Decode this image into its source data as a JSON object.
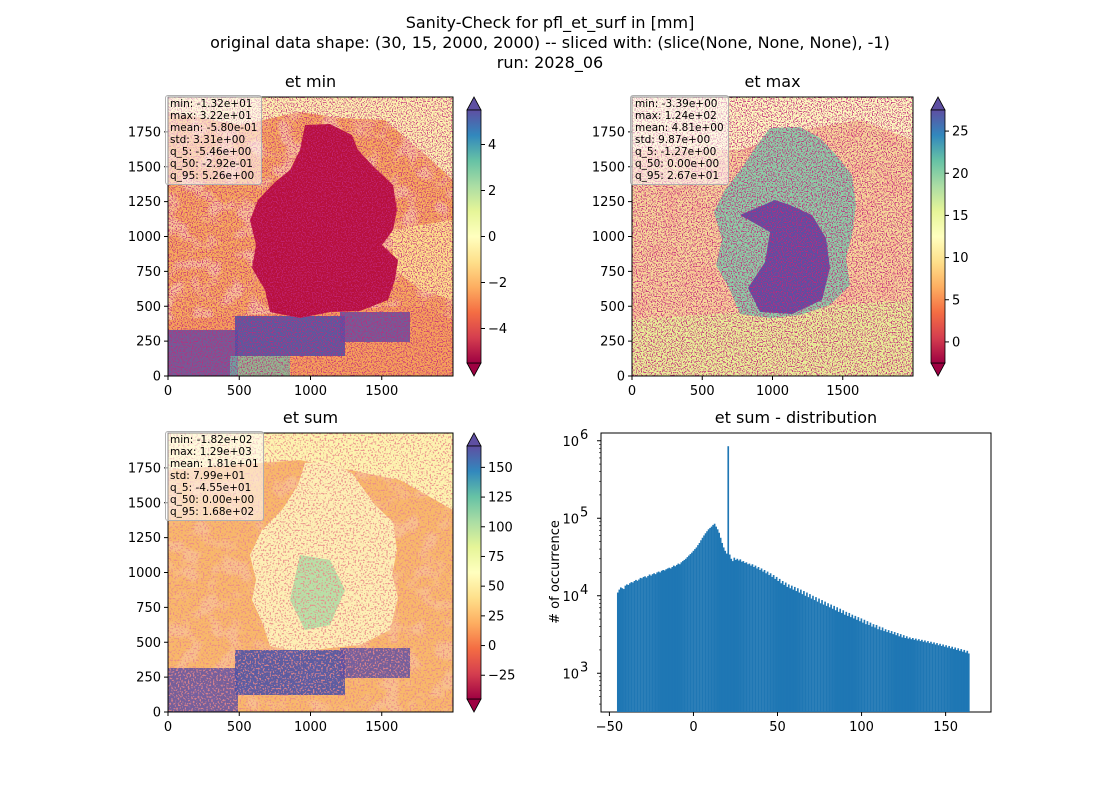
{
  "figure": {
    "title_lines": [
      "Sanity-Check for pfl_et_surf in [mm]",
      "original data shape: (30, 15, 2000, 2000) -- sliced with: (slice(None, None, None), -1)",
      "run: 2028_06"
    ]
  },
  "chart_data": [
    {
      "type": "heatmap",
      "title": "et min",
      "x_ticks": [
        "0",
        "500",
        "1000",
        "1500"
      ],
      "y_ticks": [
        "0",
        "250",
        "500",
        "750",
        "1000",
        "1250",
        "1500",
        "1750"
      ],
      "xlim": [
        0,
        2000
      ],
      "ylim": [
        0,
        2000
      ],
      "colormap": "Spectral",
      "colorbar_range": [
        -5.5,
        5.5
      ],
      "colorbar_ticks": [
        "4",
        "2",
        "0",
        "−2",
        "−4"
      ],
      "colorbar_tick_values": [
        4,
        2,
        0,
        -2,
        -4
      ],
      "stats": [
        "min: -1.32e+01",
        "max: 3.22e+01",
        "mean: -5.80e-01",
        "std: 3.31e+00",
        "q_5: -5.46e+00",
        "q_50: -2.92e-01",
        "q_95: 5.26e+00"
      ]
    },
    {
      "type": "heatmap",
      "title": "et max",
      "x_ticks": [
        "0",
        "500",
        "1000",
        "1500"
      ],
      "y_ticks": [
        "0",
        "250",
        "500",
        "750",
        "1000",
        "1250",
        "1500",
        "1750"
      ],
      "xlim": [
        0,
        2000
      ],
      "ylim": [
        0,
        2000
      ],
      "colormap": "Spectral",
      "colorbar_range": [
        -2.5,
        27.5
      ],
      "colorbar_ticks": [
        "25",
        "20",
        "15",
        "10",
        "5",
        "0"
      ],
      "colorbar_tick_values": [
        25,
        20,
        15,
        10,
        5,
        0
      ],
      "stats": [
        "min: -3.39e+00",
        "max: 1.24e+02",
        "mean: 4.81e+00",
        "std: 9.87e+00",
        "q_5: -1.27e+00",
        "q_50: 0.00e+00",
        "q_95: 2.67e+01"
      ]
    },
    {
      "type": "heatmap",
      "title": "et sum",
      "x_ticks": [
        "0",
        "500",
        "1000",
        "1500"
      ],
      "y_ticks": [
        "0",
        "250",
        "500",
        "750",
        "1000",
        "1250",
        "1500",
        "1750"
      ],
      "xlim": [
        0,
        2000
      ],
      "ylim": [
        0,
        2000
      ],
      "colormap": "Spectral",
      "colorbar_range": [
        -45,
        168
      ],
      "colorbar_ticks": [
        "150",
        "125",
        "100",
        "75",
        "50",
        "25",
        "0",
        "−25"
      ],
      "colorbar_tick_values": [
        150,
        125,
        100,
        75,
        50,
        25,
        0,
        -25
      ],
      "stats": [
        "min: -1.82e+02",
        "max: 1.29e+03",
        "mean: 1.81e+01",
        "std: 7.99e+01",
        "q_5: -4.55e+01",
        "q_50: 0.00e+00",
        "q_95: 1.68e+02"
      ]
    },
    {
      "type": "bar",
      "title": "et sum - distribution",
      "ylabel": "# of occurrence",
      "yscale": "log",
      "xlim": [
        -55,
        177
      ],
      "ylim_log10": [
        2.5,
        6.1
      ],
      "x_ticks": [
        "−50",
        "0",
        "50",
        "100",
        "150"
      ],
      "x_tick_values": [
        -50,
        0,
        50,
        100,
        150
      ],
      "y_tick_values": [
        1000,
        10000,
        100000,
        1000000
      ],
      "y_ticks_base": [
        "10",
        "10",
        "10",
        "10"
      ],
      "y_ticks_exp": [
        "3",
        "4",
        "5",
        "6"
      ],
      "bar_color": "#1f77b4",
      "bins": {
        "start": -45.5,
        "width": 0.9
      },
      "counts": [
        11000,
        12000,
        12800,
        12500,
        12200,
        13500,
        14000,
        13800,
        14500,
        15000,
        14800,
        15500,
        16000,
        15600,
        16200,
        17000,
        16800,
        17500,
        17800,
        17200,
        18000,
        18800,
        18200,
        19000,
        19500,
        19000,
        20000,
        20500,
        20000,
        21000,
        21500,
        21200,
        22000,
        22500,
        23000,
        22500,
        23500,
        24500,
        24000,
        25000,
        26000,
        25500,
        27000,
        28000,
        29000,
        30000,
        31500,
        33000,
        34500,
        36000,
        38000,
        40000,
        42000,
        45000,
        48000,
        52000,
        56000,
        60000,
        64000,
        68000,
        72000,
        75000,
        78000,
        82000,
        85000,
        78000,
        72000,
        65000,
        56000,
        48000,
        42000,
        38000,
        35000,
        850000,
        34000,
        30000,
        28000,
        31000,
        29000,
        30000,
        28500,
        29500,
        27500,
        28000,
        26500,
        27000,
        25500,
        26000,
        24500,
        25500,
        23500,
        24500,
        22500,
        23500,
        21500,
        22500,
        20500,
        21500,
        19500,
        20500,
        18500,
        19500,
        17500,
        18500,
        16500,
        17500,
        15500,
        16500,
        14500,
        15500,
        13800,
        14800,
        13000,
        14000,
        12500,
        13500,
        12000,
        13000,
        11500,
        12500,
        11000,
        12000,
        10500,
        11500,
        10000,
        11000,
        9600,
        10500,
        9200,
        10000,
        8800,
        9600,
        8400,
        9200,
        8000,
        8800,
        7700,
        8400,
        7400,
        8000,
        7100,
        7700,
        6800,
        7400,
        6500,
        7100,
        6200,
        6800,
        6000,
        6500,
        5700,
        6200,
        5500,
        6000,
        5300,
        5700,
        5100,
        5500,
        4900,
        5300,
        4700,
        5100,
        4500,
        4900,
        4300,
        4700,
        4200,
        4500,
        4000,
        4300,
        3900,
        4200,
        3700,
        4000,
        3600,
        3900,
        3500,
        3700,
        3400,
        3600,
        3300,
        3500,
        3200,
        3400,
        3100,
        3300,
        3000,
        3200,
        2900,
        3100,
        2850,
        3000,
        2800,
        2900,
        2750,
        2850,
        2700,
        2800,
        2650,
        2750,
        2600,
        2700,
        2550,
        2650,
        2500,
        2600,
        2450,
        2550,
        2400,
        2500,
        2350,
        2450,
        2300,
        2400,
        2250,
        2350,
        2200,
        2300,
        2150,
        2250,
        2100,
        2200,
        2050,
        2150,
        2000,
        2100,
        1950,
        2050,
        1900,
        2000,
        1850,
        1950,
        1800
      ]
    }
  ]
}
